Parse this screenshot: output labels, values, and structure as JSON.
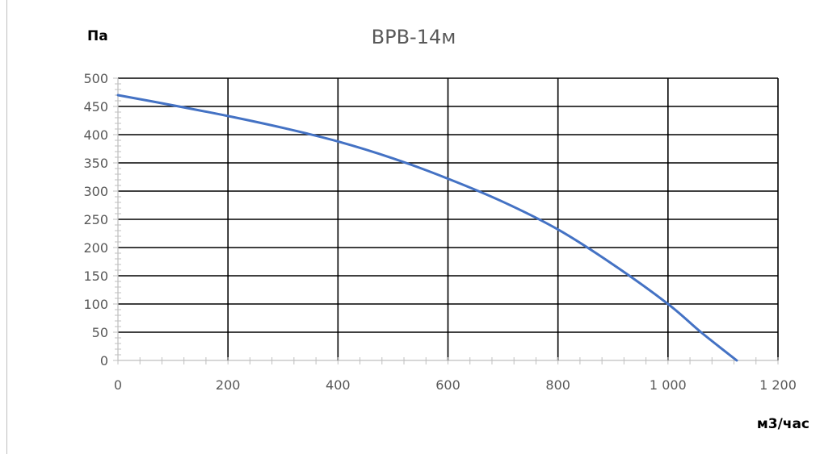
{
  "chart_data": {
    "type": "line",
    "title": "ВРВ-14м",
    "ylabel": "Па",
    "xlabel": "м3/час",
    "xlim": [
      0,
      1200
    ],
    "ylim": [
      0,
      500
    ],
    "x_ticks": [
      0,
      200,
      400,
      600,
      800,
      1000,
      1200
    ],
    "x_tick_labels": [
      "0",
      "200",
      "400",
      "600",
      "800",
      "1 000",
      "1 200"
    ],
    "y_ticks": [
      0,
      50,
      100,
      150,
      200,
      250,
      300,
      350,
      400,
      450,
      500
    ],
    "y_tick_labels": [
      "0",
      "50",
      "100",
      "150",
      "200",
      "250",
      "300",
      "350",
      "400",
      "450",
      "500"
    ],
    "grid": true,
    "series": [
      {
        "color": "#4472C4",
        "x": [
          0,
          100,
          200,
          300,
          400,
          500,
          600,
          700,
          800,
          900,
          1000,
          1060,
          1125
        ],
        "y": [
          470,
          452,
          433,
          412,
          388,
          358,
          322,
          281,
          232,
          170,
          100,
          50,
          0
        ]
      }
    ],
    "colors": {
      "line": "#4472C4",
      "grid": "#000000",
      "text": "#595959"
    }
  }
}
